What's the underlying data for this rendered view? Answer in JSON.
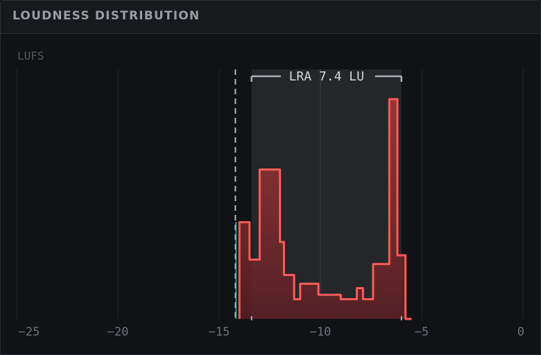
{
  "panel": {
    "title": "LOUDNESS DISTRIBUTION"
  },
  "chart_data": {
    "type": "area",
    "ylabel": "LUFS",
    "xlim": [
      -25,
      0
    ],
    "x_ticks": [
      -25,
      -20,
      -15,
      -10,
      -5,
      0
    ],
    "x_tick_labels": [
      "−25",
      "−20",
      "−15",
      "−10",
      "−5",
      "0"
    ],
    "grid": true,
    "series": [
      {
        "type": "histogram",
        "color": "#ff5c57",
        "x": [
          -14.0,
          -13.5,
          -13.0,
          -12.0,
          -11.8,
          -11.3,
          -11.0,
          -10.1,
          -9.0,
          -8.2,
          -7.9,
          -7.4,
          -6.6,
          -6.2,
          -5.8,
          -5.5
        ],
        "values": [
          0.44,
          0.27,
          0.68,
          0.35,
          0.2,
          0.09,
          0.16,
          0.11,
          0.09,
          0.14,
          0.09,
          0.25,
          1.0,
          0.29,
          0.0,
          0.0
        ]
      }
    ],
    "threshold": {
      "x": -14.2,
      "color": "#b4b7bd",
      "style": "dashed"
    },
    "lra": {
      "label": "LRA 7.4 LU",
      "start": -13.4,
      "end": -6.0
    }
  }
}
